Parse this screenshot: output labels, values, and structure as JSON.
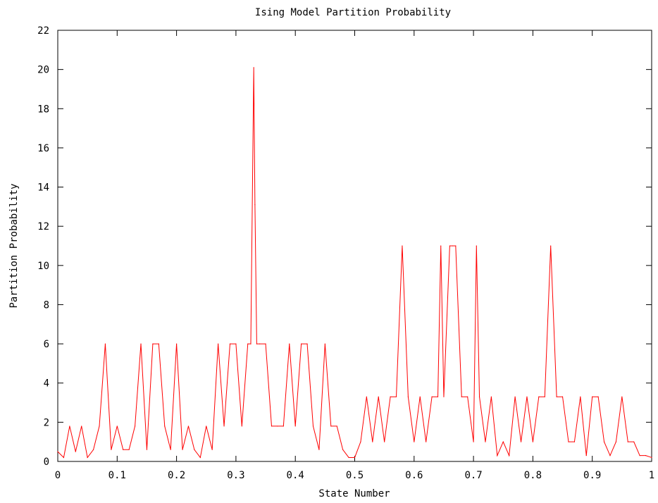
{
  "chart_data": {
    "type": "line",
    "title": "Ising Model Partition Probability",
    "xlabel": "State Number",
    "ylabel": "Partition Probability",
    "xlim": [
      0,
      1
    ],
    "ylim": [
      0,
      22
    ],
    "x_ticks": [
      "0",
      "0.1",
      "0.2",
      "0.3",
      "0.4",
      "0.5",
      "0.6",
      "0.7",
      "0.8",
      "0.9",
      "1"
    ],
    "y_ticks": [
      "0",
      "2",
      "4",
      "6",
      "8",
      "10",
      "12",
      "14",
      "16",
      "18",
      "20",
      "22"
    ],
    "grid": false,
    "legend": "none",
    "series": [
      {
        "color": "#ff0000",
        "x": [
          0.0,
          0.01,
          0.02,
          0.03,
          0.04,
          0.05,
          0.06,
          0.07,
          0.08,
          0.09,
          0.1,
          0.11,
          0.12,
          0.13,
          0.14,
          0.15,
          0.16,
          0.17,
          0.18,
          0.19,
          0.2,
          0.21,
          0.22,
          0.23,
          0.24,
          0.25,
          0.26,
          0.27,
          0.28,
          0.29,
          0.3,
          0.31,
          0.32,
          0.325,
          0.33,
          0.332,
          0.335,
          0.34,
          0.35,
          0.36,
          0.37,
          0.38,
          0.39,
          0.4,
          0.41,
          0.42,
          0.43,
          0.44,
          0.45,
          0.46,
          0.47,
          0.48,
          0.49,
          0.5,
          0.51,
          0.52,
          0.53,
          0.54,
          0.55,
          0.56,
          0.57,
          0.58,
          0.59,
          0.6,
          0.61,
          0.62,
          0.63,
          0.64,
          0.645,
          0.65,
          0.66,
          0.665,
          0.67,
          0.68,
          0.69,
          0.7,
          0.705,
          0.71,
          0.72,
          0.73,
          0.74,
          0.75,
          0.76,
          0.77,
          0.78,
          0.79,
          0.8,
          0.81,
          0.82,
          0.83,
          0.84,
          0.85,
          0.86,
          0.87,
          0.88,
          0.89,
          0.9,
          0.91,
          0.92,
          0.93,
          0.94,
          0.95,
          0.96,
          0.97,
          0.98,
          0.99,
          1.0
        ],
        "values": [
          0.5,
          0.2,
          1.8,
          0.5,
          1.8,
          0.2,
          0.6,
          1.8,
          6.0,
          0.6,
          1.8,
          0.6,
          0.6,
          1.8,
          6.0,
          0.6,
          6.0,
          6.0,
          1.8,
          0.6,
          6.0,
          0.6,
          1.8,
          0.6,
          0.2,
          1.8,
          0.6,
          6.0,
          1.8,
          6.0,
          6.0,
          1.8,
          6.0,
          6.0,
          20.1,
          13.1,
          6.0,
          6.0,
          6.0,
          1.8,
          1.8,
          1.8,
          6.0,
          1.8,
          6.0,
          6.0,
          1.8,
          0.6,
          6.0,
          1.8,
          1.8,
          0.6,
          0.2,
          0.2,
          1.0,
          3.3,
          1.0,
          3.3,
          1.0,
          3.3,
          3.3,
          11.0,
          3.3,
          1.0,
          3.3,
          1.0,
          3.3,
          3.3,
          11.0,
          3.3,
          11.0,
          11.0,
          11.0,
          3.3,
          3.3,
          1.0,
          11.0,
          3.3,
          1.0,
          3.3,
          0.3,
          1.0,
          0.3,
          3.3,
          1.0,
          3.3,
          1.0,
          3.3,
          3.3,
          11.0,
          3.3,
          3.3,
          1.0,
          1.0,
          3.3,
          0.3,
          3.3,
          3.3,
          1.0,
          0.3,
          1.0,
          3.3,
          1.0,
          1.0,
          0.3,
          0.3,
          0.2
        ]
      }
    ]
  }
}
